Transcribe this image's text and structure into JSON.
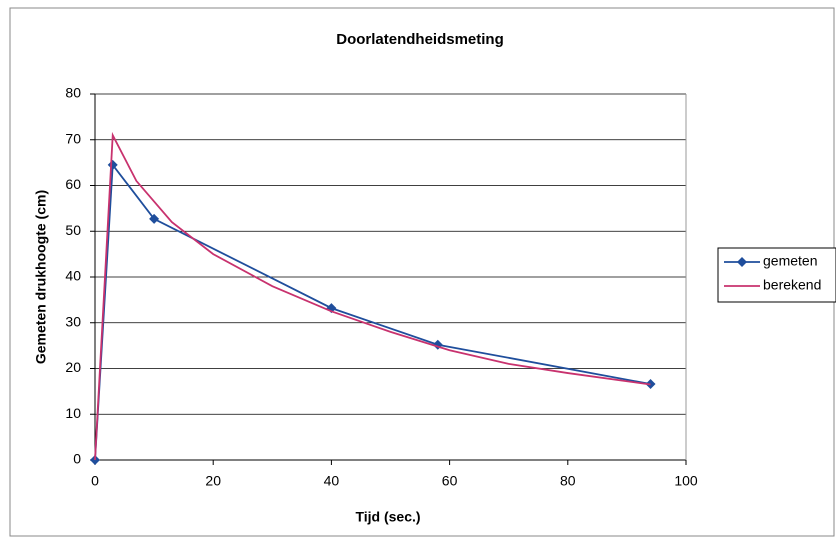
{
  "chart_data": {
    "type": "line",
    "title": "Doorlatendheidsmeting",
    "x_label": "Tijd (sec.)",
    "y_label": "Gemeten drukhoogte (cm)",
    "xlim": [
      0,
      100
    ],
    "xticks": [
      0,
      20,
      40,
      60,
      80,
      100
    ],
    "ylim": [
      0,
      80
    ],
    "yticks": [
      0,
      10,
      20,
      30,
      40,
      50,
      60,
      70,
      80
    ],
    "grid": true,
    "legend": "right",
    "series": [
      {
        "name": "gemeten",
        "color": "#1f4e9c",
        "marker": "diamond",
        "x": [
          0,
          3,
          10,
          40,
          58,
          94
        ],
        "values": [
          0,
          64.5,
          52.7,
          33.2,
          25.2,
          16.6
        ]
      },
      {
        "name": "berekend",
        "color": "#c8326e",
        "marker": "none",
        "x": [
          0,
          3,
          7,
          13,
          20,
          30,
          40,
          50,
          60,
          70,
          80,
          94
        ],
        "values": [
          0,
          71,
          61,
          52,
          45,
          38,
          32.5,
          28,
          24,
          21,
          19,
          16.5
        ]
      }
    ]
  }
}
